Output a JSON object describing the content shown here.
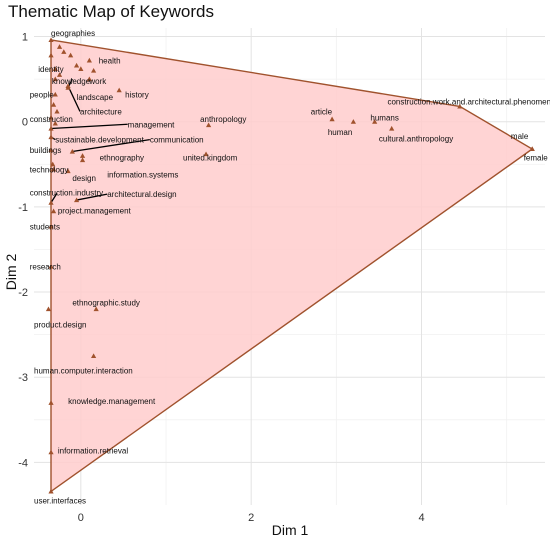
{
  "chart_data": {
    "type": "scatter",
    "title": "Thematic Map of Keywords",
    "xlabel": "Dim 1",
    "ylabel": "Dim 2",
    "xlim": [
      -0.55,
      5.45
    ],
    "ylim": [
      -4.5,
      1.1
    ],
    "x_ticks": [
      0,
      2,
      4
    ],
    "y_ticks": [
      1,
      0,
      -1,
      -2,
      -3,
      -4
    ],
    "grid": true,
    "colors": {
      "hull_fill": "#ffcccc",
      "hull_stroke": "#a0522d",
      "point": "#a0522d",
      "leader": "#000000"
    },
    "hull": [
      [
        -0.35,
        0.96
      ],
      [
        4.45,
        0.18
      ],
      [
        5.3,
        -0.32
      ],
      [
        -0.35,
        -4.34
      ]
    ],
    "points": [
      {
        "label": "geographies",
        "x": -0.35,
        "y": 0.96,
        "lx": -0.35,
        "ly": 1.04
      },
      {
        "label": "identity",
        "x": -0.3,
        "y": 0.62,
        "lx": -0.5,
        "ly": 0.62
      },
      {
        "label": "knowledge",
        "x": -0.3,
        "y": 0.5,
        "lx": -0.34,
        "ly": 0.48
      },
      {
        "label": "work",
        "x": 0.1,
        "y": 0.5,
        "lx": 0.1,
        "ly": 0.48
      },
      {
        "label": "health",
        "x": 0.1,
        "y": 0.72,
        "lx": 0.21,
        "ly": 0.72
      },
      {
        "label": "people",
        "x": -0.3,
        "y": 0.32,
        "lx": -0.6,
        "ly": 0.32
      },
      {
        "label": "landscape",
        "x": -0.15,
        "y": 0.4,
        "lx": -0.05,
        "ly": 0.29
      },
      {
        "label": "history",
        "x": 0.45,
        "y": 0.37,
        "lx": 0.52,
        "ly": 0.32
      },
      {
        "label": "architecture",
        "x": -0.15,
        "y": 0.42,
        "lx": -0.01,
        "ly": 0.12
      },
      {
        "label": "construction",
        "x": -0.35,
        "y": 0.05,
        "lx": -0.6,
        "ly": 0.03
      },
      {
        "label": "management",
        "x": -0.35,
        "y": -0.08,
        "lx": 0.55,
        "ly": -0.03
      },
      {
        "label": "anthropology",
        "x": 1.5,
        "y": -0.04,
        "lx": 1.4,
        "ly": 0.03
      },
      {
        "label": "article",
        "x": 2.95,
        "y": 0.03,
        "lx": 2.7,
        "ly": 0.12
      },
      {
        "label": "humans",
        "x": 3.45,
        "y": 0.0,
        "lx": 3.4,
        "ly": 0.05
      },
      {
        "label": "human",
        "x": 3.2,
        "y": 0.0,
        "lx": 2.9,
        "ly": -0.12
      },
      {
        "label": "cultural.anthropology",
        "x": 3.65,
        "y": -0.08,
        "lx": 3.5,
        "ly": -0.2
      },
      {
        "label": "construction.work.and.architectural.phenomena",
        "x": 4.45,
        "y": 0.18,
        "lx": 3.6,
        "ly": 0.24
      },
      {
        "label": "male",
        "x": 5.3,
        "y": -0.32,
        "lx": 5.05,
        "ly": -0.17
      },
      {
        "label": "female",
        "x": 5.3,
        "y": -0.32,
        "lx": 5.2,
        "ly": -0.42
      },
      {
        "label": "sustainable.development",
        "x": -0.35,
        "y": -0.18,
        "lx": -0.3,
        "ly": -0.21
      },
      {
        "label": "communication",
        "x": -0.1,
        "y": -0.35,
        "lx": 0.81,
        "ly": -0.21
      },
      {
        "label": "buildings",
        "x": -0.35,
        "y": -0.33,
        "lx": -0.6,
        "ly": -0.33
      },
      {
        "label": "ethnography",
        "x": 0.02,
        "y": -0.4,
        "lx": 0.22,
        "ly": -0.42
      },
      {
        "label": "united.kingdom",
        "x": 1.47,
        "y": -0.38,
        "lx": 1.2,
        "ly": -0.42
      },
      {
        "label": "technology",
        "x": -0.32,
        "y": -0.56,
        "lx": -0.6,
        "ly": -0.56
      },
      {
        "label": "design",
        "x": -0.15,
        "y": -0.58,
        "lx": -0.1,
        "ly": -0.66
      },
      {
        "label": "information.systems",
        "x": 0.02,
        "y": -0.45,
        "lx": 0.31,
        "ly": -0.62
      },
      {
        "label": "construction.industry",
        "x": -0.35,
        "y": -0.95,
        "lx": -0.6,
        "ly": -0.83
      },
      {
        "label": "architectural.design",
        "x": -0.05,
        "y": -0.92,
        "lx": 0.31,
        "ly": -0.85
      },
      {
        "label": "project.management",
        "x": -0.32,
        "y": -1.05,
        "lx": -0.27,
        "ly": -1.04
      },
      {
        "label": "students",
        "x": -0.35,
        "y": -1.23,
        "lx": -0.6,
        "ly": -1.23
      },
      {
        "label": "research",
        "x": -0.35,
        "y": -1.7,
        "lx": -0.6,
        "ly": -1.7
      },
      {
        "label": "ethnographic.study",
        "x": 0.18,
        "y": -2.2,
        "lx": -0.1,
        "ly": -2.12
      },
      {
        "label": "product.design",
        "x": -0.38,
        "y": -2.2,
        "lx": -0.55,
        "ly": -2.38
      },
      {
        "label": "human.computer.interaction",
        "x": 0.15,
        "y": -2.75,
        "lx": -0.55,
        "ly": -2.92
      },
      {
        "label": "knowledge.management",
        "x": -0.35,
        "y": -3.3,
        "lx": -0.15,
        "ly": -3.28
      },
      {
        "label": "information.retrieval",
        "x": -0.35,
        "y": -3.88,
        "lx": -0.27,
        "ly": -3.86
      },
      {
        "label": "user.interfaces",
        "x": -0.35,
        "y": -4.34,
        "lx": -0.55,
        "ly": -4.45
      }
    ],
    "extra_points": [
      [
        -0.25,
        0.88
      ],
      [
        -0.2,
        0.82
      ],
      [
        -0.35,
        0.78
      ],
      [
        -0.12,
        0.78
      ],
      [
        0.0,
        0.62
      ],
      [
        -0.25,
        0.55
      ],
      [
        -0.05,
        0.66
      ],
      [
        0.15,
        0.6
      ],
      [
        -0.32,
        0.2
      ],
      [
        -0.3,
        -0.02
      ],
      [
        -0.28,
        0.12
      ],
      [
        -0.33,
        -0.5
      ]
    ],
    "leaders": [
      [
        [
          -0.35,
          -0.08
        ],
        [
          0.55,
          -0.03
        ]
      ],
      [
        [
          -0.1,
          -0.35
        ],
        [
          0.81,
          -0.21
        ]
      ],
      [
        [
          -0.05,
          -0.92
        ],
        [
          0.31,
          -0.85
        ]
      ],
      [
        [
          -0.35,
          -0.95
        ],
        [
          -0.28,
          -0.84
        ]
      ],
      [
        [
          -0.15,
          0.42
        ],
        [
          -0.01,
          0.12
        ]
      ],
      [
        [
          -0.35,
          -0.18
        ],
        [
          -0.3,
          -0.21
        ]
      ],
      [
        [
          -0.15,
          0.4
        ],
        [
          -0.1,
          0.5
        ]
      ]
    ]
  }
}
